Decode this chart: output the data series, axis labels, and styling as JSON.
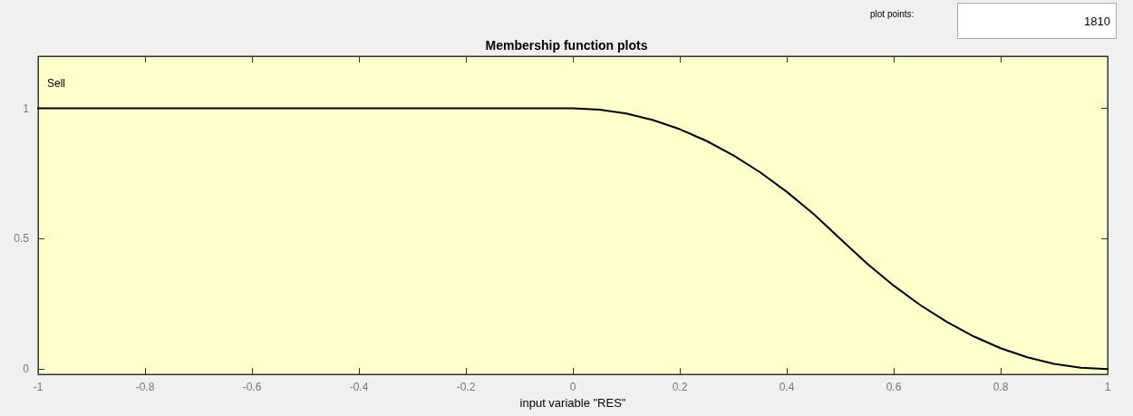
{
  "chart_data": {
    "type": "line",
    "title": "Membership function plots",
    "xlabel": "input variable \"RES\"",
    "annotations": [
      "Sell",
      "plot points:",
      "1810"
    ],
    "series": [
      {
        "color": "#000000",
        "x": [
          -1,
          0,
          0.05,
          0.1,
          0.15,
          0.2,
          0.25,
          0.3,
          0.35,
          0.4,
          0.45,
          0.5,
          0.55,
          0.6,
          0.65,
          0.7,
          0.75,
          0.8,
          0.85,
          0.9,
          0.95,
          1
        ],
        "values": [
          1,
          1,
          0.995,
          0.98,
          0.955,
          0.92,
          0.875,
          0.82,
          0.755,
          0.68,
          0.595,
          0.5,
          0.405,
          0.32,
          0.245,
          0.18,
          0.125,
          0.08,
          0.045,
          0.02,
          0.005,
          0
        ]
      }
    ],
    "xlim": [
      -1,
      1
    ],
    "xticks": [
      -1,
      -0.8,
      -0.6,
      -0.4,
      -0.2,
      0,
      0.2,
      0.4,
      0.6,
      0.8,
      1
    ],
    "ylim": [
      -0.02,
      1.2
    ],
    "yticks": [
      0,
      0.5,
      1
    ],
    "marker": "none",
    "line_style": "solid"
  }
}
